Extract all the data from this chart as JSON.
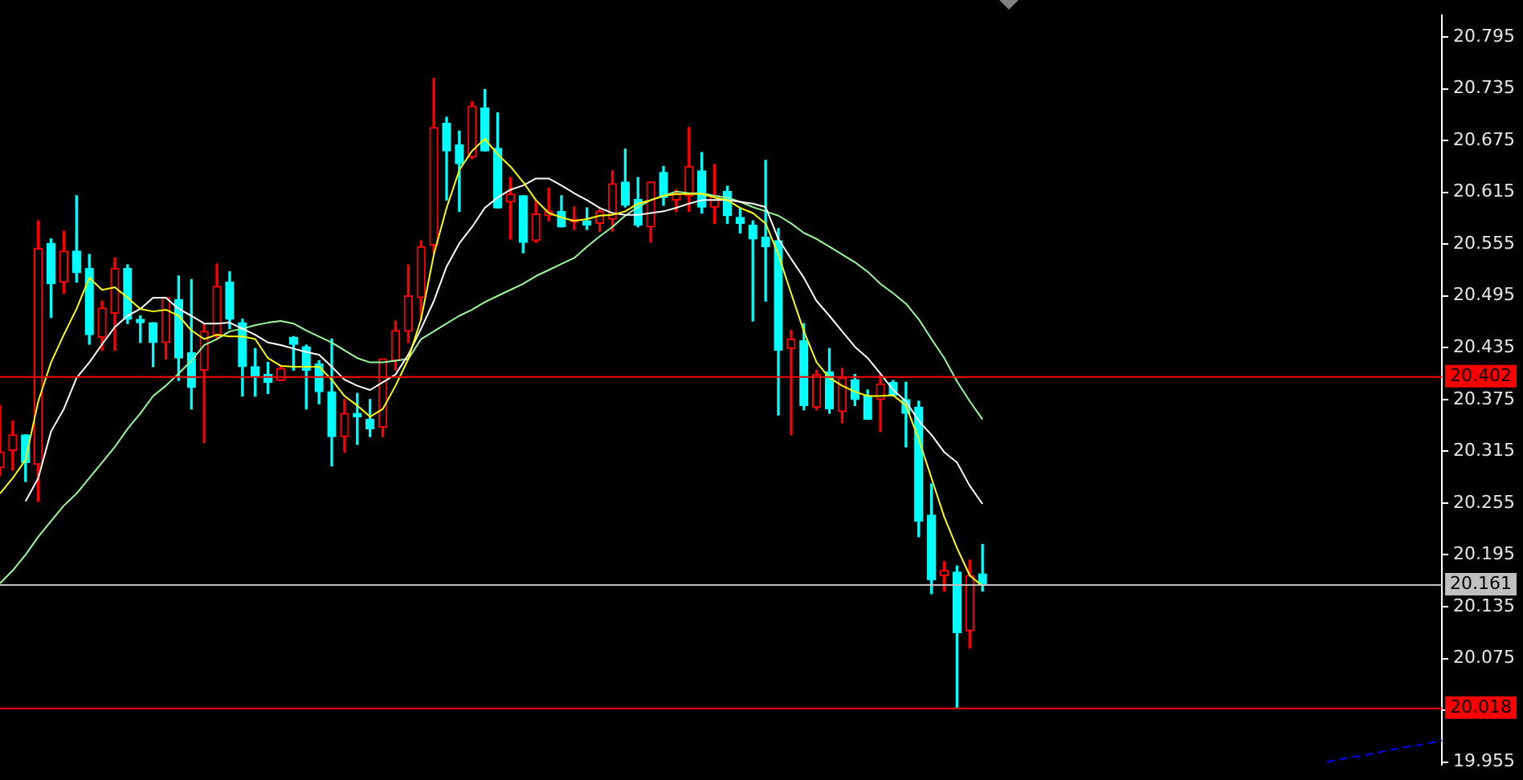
{
  "chart_data": {
    "type": "candlestick",
    "categories": [
      null,
      null,
      null,
      null,
      null,
      null,
      null,
      null,
      null,
      null,
      null,
      null,
      null,
      null,
      null,
      null,
      null,
      null,
      null,
      null,
      null,
      null,
      null,
      null,
      null,
      null,
      null,
      null,
      null,
      null,
      null,
      null,
      null,
      null,
      null,
      null,
      null,
      null,
      null,
      null,
      null,
      null,
      null,
      null,
      null,
      null,
      null,
      null,
      null,
      null,
      null,
      null,
      null,
      null,
      null,
      null,
      null,
      null,
      null,
      null,
      null,
      null,
      null,
      null,
      null,
      null,
      null,
      null,
      null,
      null,
      null,
      null,
      null,
      null,
      null,
      null,
      null,
      null,
      null,
      null,
      null,
      null,
      null,
      null,
      null,
      null,
      null,
      null,
      null,
      null,
      null,
      null,
      null,
      null,
      null,
      null,
      null,
      null,
      null,
      null,
      null,
      null,
      null,
      null,
      null,
      null,
      null,
      null,
      null,
      null,
      null,
      null,
      null,
      null
    ],
    "ohlc": [
      [
        20.296,
        20.368,
        20.287,
        20.314
      ],
      [
        20.316,
        20.35,
        20.293,
        20.334
      ],
      [
        20.334,
        20.334,
        20.28,
        20.302
      ],
      [
        20.3,
        20.582,
        20.257,
        20.55
      ],
      [
        20.556,
        20.561,
        20.47,
        20.509
      ],
      [
        20.511,
        20.57,
        20.498,
        20.547
      ],
      [
        20.547,
        20.611,
        20.511,
        20.522
      ],
      [
        20.527,
        20.543,
        20.439,
        20.45
      ],
      [
        20.447,
        20.489,
        20.432,
        20.481
      ],
      [
        20.475,
        20.539,
        20.432,
        20.527
      ],
      [
        20.527,
        20.531,
        20.463,
        20.468
      ],
      [
        20.468,
        20.472,
        20.441,
        20.464
      ],
      [
        20.464,
        20.464,
        20.413,
        20.441
      ],
      [
        20.441,
        20.493,
        20.422,
        20.493
      ],
      [
        20.491,
        20.518,
        20.397,
        20.423
      ],
      [
        20.429,
        20.514,
        20.364,
        20.389
      ],
      [
        20.409,
        20.463,
        20.325,
        20.454
      ],
      [
        20.45,
        20.532,
        20.445,
        20.506
      ],
      [
        20.511,
        20.523,
        20.457,
        20.468
      ],
      [
        20.464,
        20.468,
        20.379,
        20.413
      ],
      [
        20.413,
        20.434,
        20.379,
        20.402
      ],
      [
        20.404,
        20.418,
        20.382,
        20.395
      ],
      [
        20.397,
        20.414,
        20.397,
        20.411
      ],
      [
        20.447,
        20.448,
        20.409,
        20.439
      ],
      [
        20.436,
        20.438,
        20.364,
        20.409
      ],
      [
        20.416,
        20.42,
        20.37,
        20.384
      ],
      [
        20.384,
        20.445,
        20.298,
        20.332
      ],
      [
        20.332,
        20.375,
        20.314,
        20.359
      ],
      [
        20.359,
        20.382,
        20.323,
        20.355
      ],
      [
        20.352,
        20.375,
        20.332,
        20.341
      ],
      [
        20.343,
        20.422,
        20.332,
        20.422
      ],
      [
        20.42,
        20.466,
        20.409,
        20.455
      ],
      [
        20.454,
        20.531,
        20.441,
        20.495
      ],
      [
        20.493,
        20.559,
        20.468,
        20.552
      ],
      [
        20.554,
        20.747,
        20.545,
        20.69
      ],
      [
        20.695,
        20.702,
        20.606,
        20.663
      ],
      [
        20.67,
        20.686,
        20.593,
        20.648
      ],
      [
        20.656,
        20.72,
        20.654,
        20.715
      ],
      [
        20.713,
        20.734,
        20.663,
        20.663
      ],
      [
        20.666,
        20.707,
        20.597,
        20.597
      ],
      [
        20.604,
        20.632,
        20.561,
        20.613
      ],
      [
        20.611,
        20.611,
        20.545,
        20.557
      ],
      [
        20.559,
        20.606,
        20.557,
        20.59
      ],
      [
        20.588,
        20.62,
        20.582,
        20.593
      ],
      [
        20.593,
        20.611,
        20.575,
        20.575
      ],
      [
        20.581,
        20.598,
        20.572,
        20.584
      ],
      [
        20.582,
        20.597,
        20.572,
        20.577
      ],
      [
        20.579,
        20.597,
        20.57,
        20.593
      ],
      [
        20.584,
        20.64,
        20.57,
        20.625
      ],
      [
        20.627,
        20.665,
        20.598,
        20.6
      ],
      [
        20.607,
        20.632,
        20.575,
        20.577
      ],
      [
        20.575,
        20.627,
        20.557,
        20.627
      ],
      [
        20.638,
        20.645,
        20.6,
        20.609
      ],
      [
        20.606,
        20.618,
        20.593,
        20.613
      ],
      [
        20.611,
        20.69,
        20.593,
        20.645
      ],
      [
        20.64,
        20.661,
        20.591,
        20.598
      ],
      [
        20.598,
        20.647,
        20.579,
        20.611
      ],
      [
        20.616,
        20.622,
        20.579,
        20.588
      ],
      [
        20.586,
        20.597,
        20.568,
        20.579
      ],
      [
        20.577,
        20.582,
        20.466,
        20.561
      ],
      [
        20.563,
        20.652,
        20.489,
        20.552
      ],
      [
        20.559,
        20.573,
        20.357,
        20.432
      ],
      [
        20.434,
        20.455,
        20.334,
        20.445
      ],
      [
        20.443,
        20.463,
        20.363,
        20.368
      ],
      [
        20.366,
        20.409,
        20.363,
        20.404
      ],
      [
        20.407,
        20.434,
        20.359,
        20.364
      ],
      [
        20.361,
        20.411,
        20.348,
        20.4
      ],
      [
        20.398,
        20.404,
        20.368,
        20.375
      ],
      [
        20.379,
        20.386,
        20.352,
        20.352
      ],
      [
        20.375,
        20.404,
        20.338,
        20.393
      ],
      [
        20.395,
        20.397,
        20.379,
        20.38
      ],
      [
        20.375,
        20.395,
        20.32,
        20.359
      ],
      [
        20.366,
        20.373,
        20.216,
        20.234
      ],
      [
        20.241,
        20.277,
        20.15,
        20.166
      ],
      [
        20.171,
        20.187,
        20.153,
        20.177
      ],
      [
        20.175,
        20.182,
        20.018,
        20.105
      ],
      [
        20.107,
        20.189,
        20.087,
        20.171
      ],
      [
        20.173,
        20.207,
        20.153,
        20.161
      ],
      null,
      null,
      null,
      null,
      null,
      null,
      null,
      null,
      null,
      null,
      null,
      null,
      null,
      null,
      null,
      null,
      null,
      null,
      null,
      null,
      null,
      null,
      null,
      null,
      null,
      null,
      null,
      null,
      null,
      null,
      null,
      null,
      null,
      null,
      null,
      null
    ],
    "colors": [
      "#ff0000",
      "#ff0000",
      "#00ffff",
      "#ff0000",
      "#00ffff",
      "#ff0000",
      "#00ffff",
      "#00ffff",
      "#ff0000",
      "#ff0000",
      "#00ffff",
      "#00ffff",
      "#00ffff",
      "#ff0000",
      "#00ffff",
      "#00ffff",
      "#ff0000",
      "#ff0000",
      "#00ffff",
      "#00ffff",
      "#00ffff",
      "#00ffff",
      "#ff0000",
      "#00ffff",
      "#00ffff",
      "#00ffff",
      "#00ffff",
      "#ff0000",
      "#00ffff",
      "#00ffff",
      "#ff0000",
      "#ff0000",
      "#ff0000",
      "#ff0000",
      "#ff0000",
      "#00ffff",
      "#00ffff",
      "#ff0000",
      "#00ffff",
      "#00ffff",
      "#ff0000",
      "#00ffff",
      "#ff0000",
      "#ff0000",
      "#00ffff",
      "#ff0000",
      "#00ffff",
      "#ff0000",
      "#ff0000",
      "#00ffff",
      "#00ffff",
      "#ff0000",
      "#00ffff",
      "#ff0000",
      "#ff0000",
      "#00ffff",
      "#ff0000",
      "#00ffff",
      "#00ffff",
      "#00ffff",
      "#00ffff",
      "#00ffff",
      "#ff0000",
      "#00ffff",
      "#ff0000",
      "#00ffff",
      "#ff0000",
      "#00ffff",
      "#00ffff",
      "#ff0000",
      "#00ffff",
      "#00ffff",
      "#00ffff",
      "#00ffff",
      "#ff0000",
      "#00ffff",
      "#ff0000",
      "#00ffff",
      null,
      null,
      null,
      null,
      null,
      null,
      null,
      null,
      null,
      null,
      null,
      null,
      null,
      null,
      null,
      null,
      null,
      null,
      null,
      null,
      null,
      null,
      null,
      null,
      null,
      null,
      null,
      null,
      null,
      null,
      null,
      null,
      null,
      null,
      null,
      null
    ],
    "series": [
      {
        "type": "line",
        "color": "#ffff00",
        "values": [
          20.266,
          20.284,
          20.305,
          20.373,
          20.418,
          20.45,
          20.48,
          20.516,
          20.502,
          20.505,
          20.493,
          20.48,
          20.477,
          20.479,
          20.472,
          20.455,
          20.445,
          20.45,
          20.448,
          20.448,
          20.445,
          20.423,
          20.414,
          20.413,
          20.413,
          20.413,
          20.398,
          20.379,
          20.368,
          20.355,
          20.364,
          20.391,
          20.422,
          20.468,
          20.543,
          20.597,
          20.641,
          20.663,
          20.677,
          20.659,
          20.645,
          20.627,
          20.606,
          20.591,
          20.586,
          20.582,
          20.584,
          20.588,
          20.589,
          20.593,
          20.602,
          20.606,
          20.611,
          20.613,
          20.613,
          20.613,
          20.609,
          20.606,
          20.597,
          20.591,
          20.579,
          20.543,
          20.498,
          20.454,
          20.418,
          20.4,
          20.391,
          20.384,
          20.379,
          20.379,
          20.38,
          20.368,
          20.329,
          20.284,
          20.239,
          20.203,
          20.171,
          20.159,
          null,
          null,
          null,
          null,
          null,
          null,
          null,
          null,
          null,
          null,
          null,
          null,
          null,
          null,
          null,
          null,
          null,
          null,
          null,
          null,
          null,
          null,
          null,
          null,
          null,
          null,
          null,
          null,
          null,
          null,
          null,
          null,
          null,
          null,
          null,
          null
        ]
      },
      {
        "type": "line",
        "color": "#ffffff",
        "values": [
          null,
          null,
          20.257,
          20.284,
          20.338,
          20.364,
          20.4,
          20.418,
          20.439,
          20.459,
          20.472,
          20.48,
          20.493,
          20.493,
          20.48,
          20.472,
          20.463,
          20.463,
          20.464,
          20.457,
          20.45,
          20.441,
          20.438,
          20.434,
          20.43,
          20.427,
          20.413,
          20.398,
          20.391,
          20.386,
          20.395,
          20.404,
          20.427,
          20.457,
          20.489,
          20.529,
          20.556,
          20.575,
          20.597,
          20.609,
          20.618,
          20.623,
          20.631,
          20.631,
          20.623,
          20.614,
          20.606,
          20.597,
          20.591,
          20.589,
          20.589,
          20.591,
          20.593,
          20.597,
          20.602,
          20.606,
          20.606,
          20.606,
          20.604,
          20.602,
          20.598,
          20.561,
          20.538,
          20.516,
          20.489,
          20.472,
          20.454,
          20.436,
          20.423,
          20.405,
          20.386,
          20.373,
          20.35,
          20.334,
          20.314,
          20.302,
          20.275,
          20.254,
          null,
          null,
          null,
          null,
          null,
          null,
          null,
          null,
          null,
          null,
          null,
          null,
          null,
          null,
          null,
          null,
          null,
          null,
          null,
          null,
          null,
          null,
          null,
          null,
          null,
          null,
          null,
          null,
          null,
          null,
          null,
          null,
          null,
          null,
          null,
          null
        ]
      },
      {
        "type": "line",
        "color": "#98fb98",
        "values": [
          20.162,
          20.177,
          20.195,
          20.216,
          20.234,
          20.252,
          20.266,
          20.284,
          20.302,
          20.32,
          20.341,
          20.359,
          20.379,
          20.391,
          20.405,
          20.42,
          20.438,
          20.445,
          20.454,
          20.457,
          20.461,
          20.464,
          20.466,
          20.463,
          20.455,
          20.448,
          20.441,
          20.432,
          20.423,
          20.418,
          20.418,
          20.42,
          20.422,
          20.445,
          20.454,
          20.463,
          20.472,
          20.479,
          20.488,
          20.495,
          20.502,
          20.509,
          20.518,
          20.525,
          20.532,
          20.539,
          20.552,
          20.564,
          20.575,
          20.588,
          20.598,
          20.606,
          20.611,
          20.616,
          20.614,
          20.614,
          20.611,
          20.609,
          20.604,
          20.598,
          20.593,
          20.588,
          20.579,
          20.568,
          20.561,
          20.552,
          20.543,
          20.534,
          20.523,
          20.509,
          20.498,
          20.486,
          20.468,
          20.445,
          20.423,
          20.396,
          20.373,
          20.352,
          null,
          null,
          null,
          null,
          null,
          null,
          null,
          null,
          null,
          null,
          null,
          null,
          null,
          null,
          null,
          null,
          null,
          null,
          null,
          null,
          null,
          null,
          null,
          null,
          null,
          null,
          null,
          null,
          null,
          null,
          null,
          null,
          null,
          null,
          null,
          null
        ]
      },
      {
        "type": "line",
        "color": "#0000ff",
        "line_style": "dashed",
        "values": [
          null,
          null,
          null,
          null,
          null,
          null,
          null,
          null,
          null,
          null,
          null,
          null,
          null,
          null,
          null,
          null,
          null,
          null,
          null,
          null,
          null,
          null,
          null,
          null,
          null,
          null,
          null,
          null,
          null,
          null,
          null,
          null,
          null,
          null,
          null,
          null,
          null,
          null,
          null,
          null,
          null,
          null,
          null,
          null,
          null,
          null,
          null,
          null,
          null,
          null,
          null,
          null,
          null,
          null,
          null,
          null,
          null,
          null,
          null,
          null,
          null,
          null,
          null,
          null,
          null,
          null,
          null,
          null,
          null,
          null,
          null,
          null,
          null,
          null,
          null,
          null,
          null,
          null,
          null,
          null,
          null,
          null,
          null,
          null,
          null,
          null,
          null,
          null,
          null,
          null,
          null,
          null,
          null,
          null,
          null,
          null,
          null,
          null,
          null,
          null,
          null,
          null,
          null,
          null,
          19.955,
          19.958,
          19.961,
          19.963,
          19.966,
          19.969,
          19.972,
          19.974,
          19.977,
          19.98
        ]
      }
    ],
    "ylim": [
      19.952,
      20.82
    ],
    "yticks": [
      20.795,
      20.735,
      20.675,
      20.615,
      20.555,
      20.495,
      20.435,
      20.375,
      20.315,
      20.255,
      20.195,
      20.135,
      20.075,
      {
        "value": 20.015,
        "label": null
      },
      19.955
    ],
    "ref_lines": [
      {
        "axis": "y",
        "value": 20.402,
        "label": "20.402",
        "color": "#ff0000"
      },
      {
        "axis": "y",
        "value": 20.161,
        "label": "20.161",
        "color": "#c0c0c0"
      },
      {
        "axis": "y",
        "value": 20.018,
        "label": "20.018",
        "color": "#ff0000"
      }
    ],
    "tick_labels": "y",
    "grid": false,
    "legend": false
  }
}
